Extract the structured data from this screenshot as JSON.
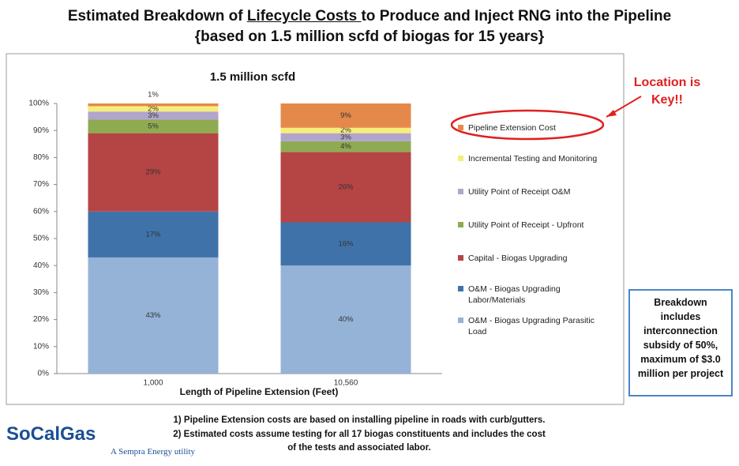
{
  "slide": {
    "title_line1": [
      "Estimated Breakdown of ",
      "Lifecycle Costs ",
      "to Produce and Inject RNG into the Pipeline"
    ],
    "title_line2": "{based on 1.5 million scfd of biogas for 15 years}",
    "annotation": "Location is Key!!",
    "note_box": "Breakdown includes interconnection subsidy of 50%, maximum of $3.0 million per project",
    "footnotes": [
      "1)  Pipeline Extension costs are based on installing pipeline in roads with curb/gutters.",
      "2)  Estimated costs assume testing for all 17 biogas constituents and includes the cost",
      "of the tests and associated labor."
    ],
    "logo": "SoCalGas",
    "logo_sub": "A Sempra Energy utility"
  },
  "chart_data": {
    "type": "stacked_bar",
    "title": "1.5 million scfd",
    "x_label": "Length of Pipeline Extension (Feet)",
    "categories": [
      "1,000",
      "10,560"
    ],
    "series": [
      {
        "name": "O&M - Biogas Upgrading Parasitic Load",
        "color": "#95b3d7",
        "values": [
          43,
          40
        ],
        "value_labels": [
          "43%",
          "40%"
        ]
      },
      {
        "name": "O&M - Biogas Upgrading Labor/Materials",
        "color": "#4072aa",
        "values": [
          17,
          16
        ],
        "value_labels": [
          "17%",
          "16%"
        ]
      },
      {
        "name": "Capital - Biogas Upgrading",
        "color": "#b54445",
        "values": [
          29,
          26
        ],
        "value_labels": [
          "29%",
          "26%"
        ]
      },
      {
        "name": "Utility Point of Receipt - Upfront",
        "color": "#8fab52",
        "values": [
          5,
          4
        ],
        "value_labels": [
          "5%",
          "4%"
        ]
      },
      {
        "name": "Utility Point of Receipt O&M",
        "color": "#b2a5cc",
        "values": [
          3,
          3
        ],
        "value_labels": [
          "3%",
          "3%"
        ]
      },
      {
        "name": "Incremental Testing and Monitoring",
        "color": "#f6ee7a",
        "values": [
          2,
          2
        ],
        "value_labels": [
          "2%",
          "2%"
        ]
      },
      {
        "name": "Pipeline Extension Cost",
        "color": "#e5894a",
        "values": [
          1,
          9
        ],
        "value_labels": [
          "1%",
          "9%"
        ]
      }
    ],
    "ylim": [
      0,
      100
    ],
    "yticks": [
      {
        "value": 0,
        "label": "0%"
      },
      {
        "value": 10,
        "label": "10%"
      },
      {
        "value": 20,
        "label": "20%"
      },
      {
        "value": 30,
        "label": "30%"
      },
      {
        "value": 40,
        "label": "40%"
      },
      {
        "value": 50,
        "label": "50%"
      },
      {
        "value": 60,
        "label": "60%"
      },
      {
        "value": 70,
        "label": "70%"
      },
      {
        "value": 80,
        "label": "80%"
      },
      {
        "value": 90,
        "label": "90%"
      },
      {
        "value": 100,
        "label": "100%"
      }
    ],
    "grid": false,
    "legend": "right"
  }
}
